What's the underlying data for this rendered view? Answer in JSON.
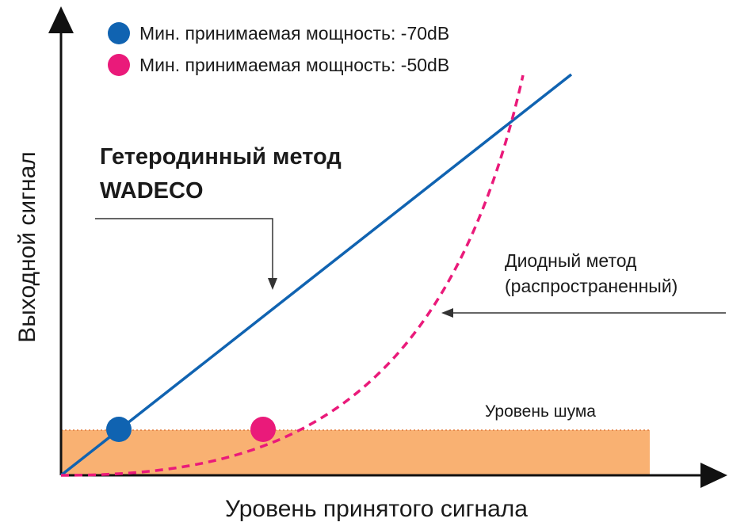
{
  "colors": {
    "heterodyne_line": "#1063b1",
    "diode_curve": "#ea1a7a",
    "noise_fill": "#f9b172",
    "axes": "#111111",
    "annotation_arrow": "#333333"
  },
  "legend": [
    {
      "marker_color": "#1063b1",
      "text": "Мин. принимаемая мощность: -70dB"
    },
    {
      "marker_color": "#ea1a7a",
      "text": "Мин. принимаемая мощность: -50dB"
    }
  ],
  "labels": {
    "heterodyne_line1": "Гетеродинный метод",
    "heterodyne_line2": "WADECO",
    "diode_line1": "Диодный метод",
    "diode_line2": "(распространенный)",
    "noise_level": "Уровень шума"
  },
  "axes": {
    "x_label": "Уровень принятого сигнала",
    "y_label": "Выходной сигнал"
  },
  "icons": {
    "x_axis_arrow": "arrow-right-icon",
    "y_axis_arrow": "arrow-up-icon"
  }
}
